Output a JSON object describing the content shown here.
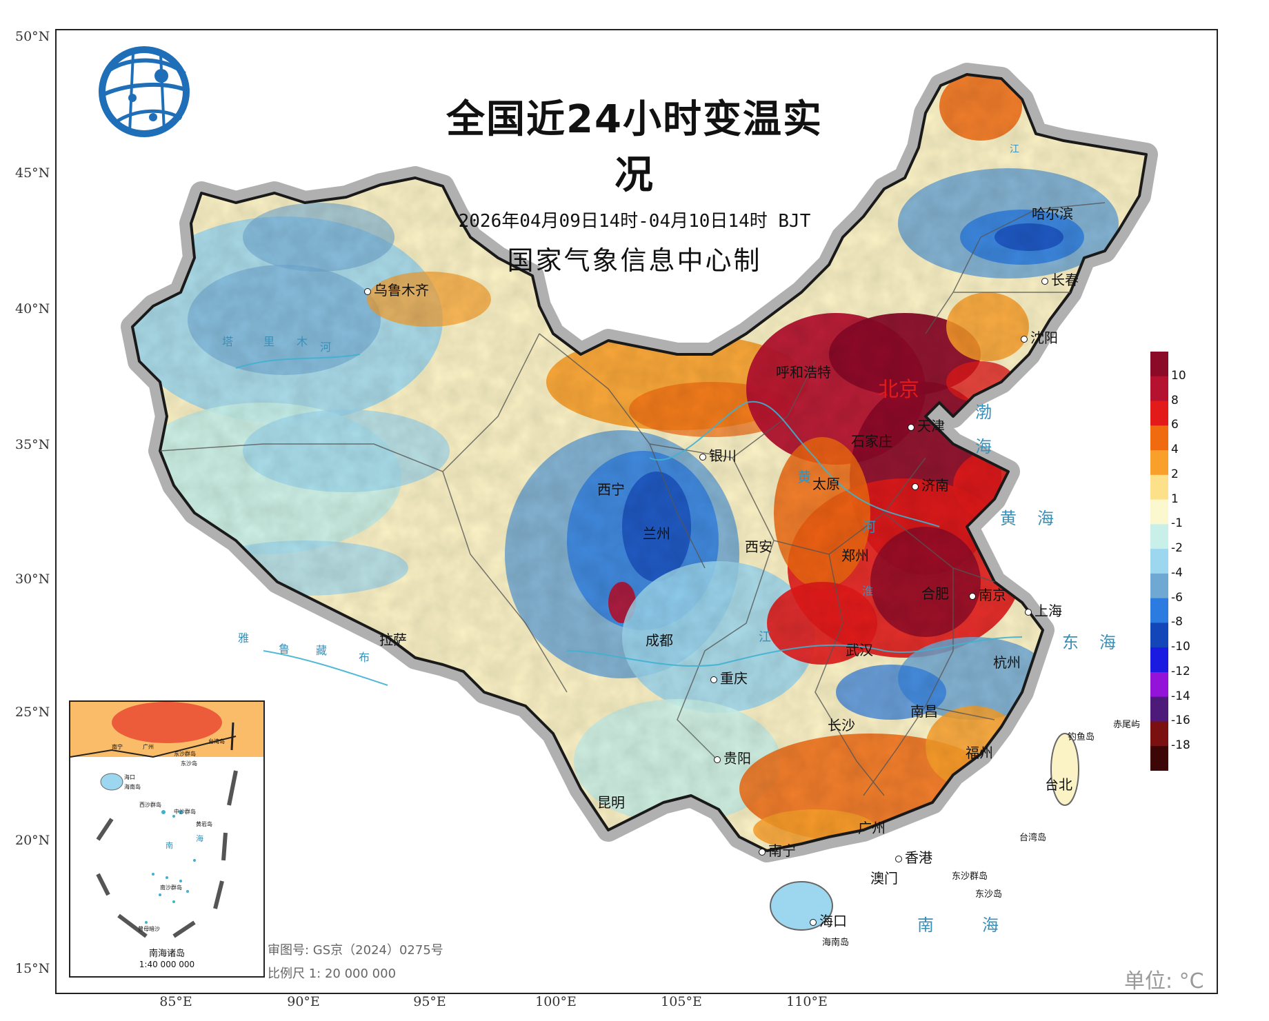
{
  "header": {
    "title": "全国近24小时变温实况",
    "time_range": "2026年04月09日14时-04月10日14时 BJT",
    "producer": "国家气象信息中心制"
  },
  "axes": {
    "latitudes": [
      "50°N",
      "45°N",
      "40°N",
      "35°N",
      "30°N",
      "25°N",
      "20°N",
      "15°N"
    ],
    "longitudes": [
      "85°E",
      "90°E",
      "95°E",
      "100°E",
      "105°E",
      "110°E"
    ]
  },
  "legend": {
    "labels": [
      "10",
      "8",
      "6",
      "4",
      "2",
      "1",
      "-1",
      "-2",
      "-4",
      "-6",
      "-8",
      "-10",
      "-12",
      "-14",
      "-16",
      "-18"
    ],
    "colors": [
      "#8b0a28",
      "#b5122f",
      "#e21a1a",
      "#f06a10",
      "#f9a02a",
      "#fde08a",
      "#fbf8d0",
      "#c8f0e8",
      "#9cd7ef",
      "#6fa8d3",
      "#2b7be0",
      "#1346b8",
      "#1a1ae0",
      "#9313d8",
      "#4d1a7a",
      "#7a1010",
      "#3d0606"
    ]
  },
  "cities": [
    {
      "name": "乌鲁木齐"
    },
    {
      "name": "呼和浩特"
    },
    {
      "name": "北京"
    },
    {
      "name": "天津"
    },
    {
      "name": "石家庄"
    },
    {
      "name": "太原"
    },
    {
      "name": "济南"
    },
    {
      "name": "银川"
    },
    {
      "name": "西宁"
    },
    {
      "name": "兰州"
    },
    {
      "name": "西安"
    },
    {
      "name": "郑州"
    },
    {
      "name": "合肥"
    },
    {
      "name": "南京"
    },
    {
      "name": "上海"
    },
    {
      "name": "武汉"
    },
    {
      "name": "杭州"
    },
    {
      "name": "拉萨"
    },
    {
      "name": "成都"
    },
    {
      "name": "重庆"
    },
    {
      "name": "长沙"
    },
    {
      "name": "南昌"
    },
    {
      "name": "福州"
    },
    {
      "name": "贵阳"
    },
    {
      "name": "昆明"
    },
    {
      "name": "南宁"
    },
    {
      "name": "广州"
    },
    {
      "name": "香港"
    },
    {
      "name": "澳门"
    },
    {
      "name": "海口"
    },
    {
      "name": "台北"
    },
    {
      "name": "哈尔滨"
    },
    {
      "name": "长春"
    },
    {
      "name": "沈阳"
    }
  ],
  "seas": {
    "bohai_1": "渤",
    "bohai_2": "海",
    "yellow_sea": "黄海",
    "east_sea": "东海",
    "south_sea": "南海"
  },
  "rivers": {
    "tarim": [
      "塔",
      "里",
      "木",
      "河"
    ],
    "yarlung": [
      "雅",
      "鲁",
      "藏",
      "布"
    ],
    "yellow": [
      "黄",
      "河"
    ],
    "huai": "淮",
    "yangtze": "江",
    "heilong": "江"
  },
  "small_places": {
    "chiwei": "赤尾屿",
    "diaoyu": "钓鱼岛",
    "taiwan": "台湾岛",
    "dongsha_qundao": "东沙群岛",
    "dongsha_dao": "东沙岛",
    "hainan": "海南岛"
  },
  "inset": {
    "title": "南海诸岛",
    "scale": "1:40 000 000",
    "places": {
      "nanning": "南宁",
      "guangzhou": "广州",
      "taiwan": "台湾岛",
      "dongsha": "东沙群岛",
      "dongsha_dao": "东沙岛",
      "haikou": "海口",
      "hainan": "海南岛",
      "xisha": "西沙群岛",
      "zhongsha": "中沙群岛",
      "huangyan": "黄岩岛",
      "nansha": "南沙群岛",
      "zengmu": "曾母暗沙",
      "nan": "南",
      "hai": "海"
    }
  },
  "notices": {
    "approval": "审图号: GS京（2024）0275号",
    "scale": "比例尺 1: 20 000 000"
  },
  "watermark": "单位: °C"
}
